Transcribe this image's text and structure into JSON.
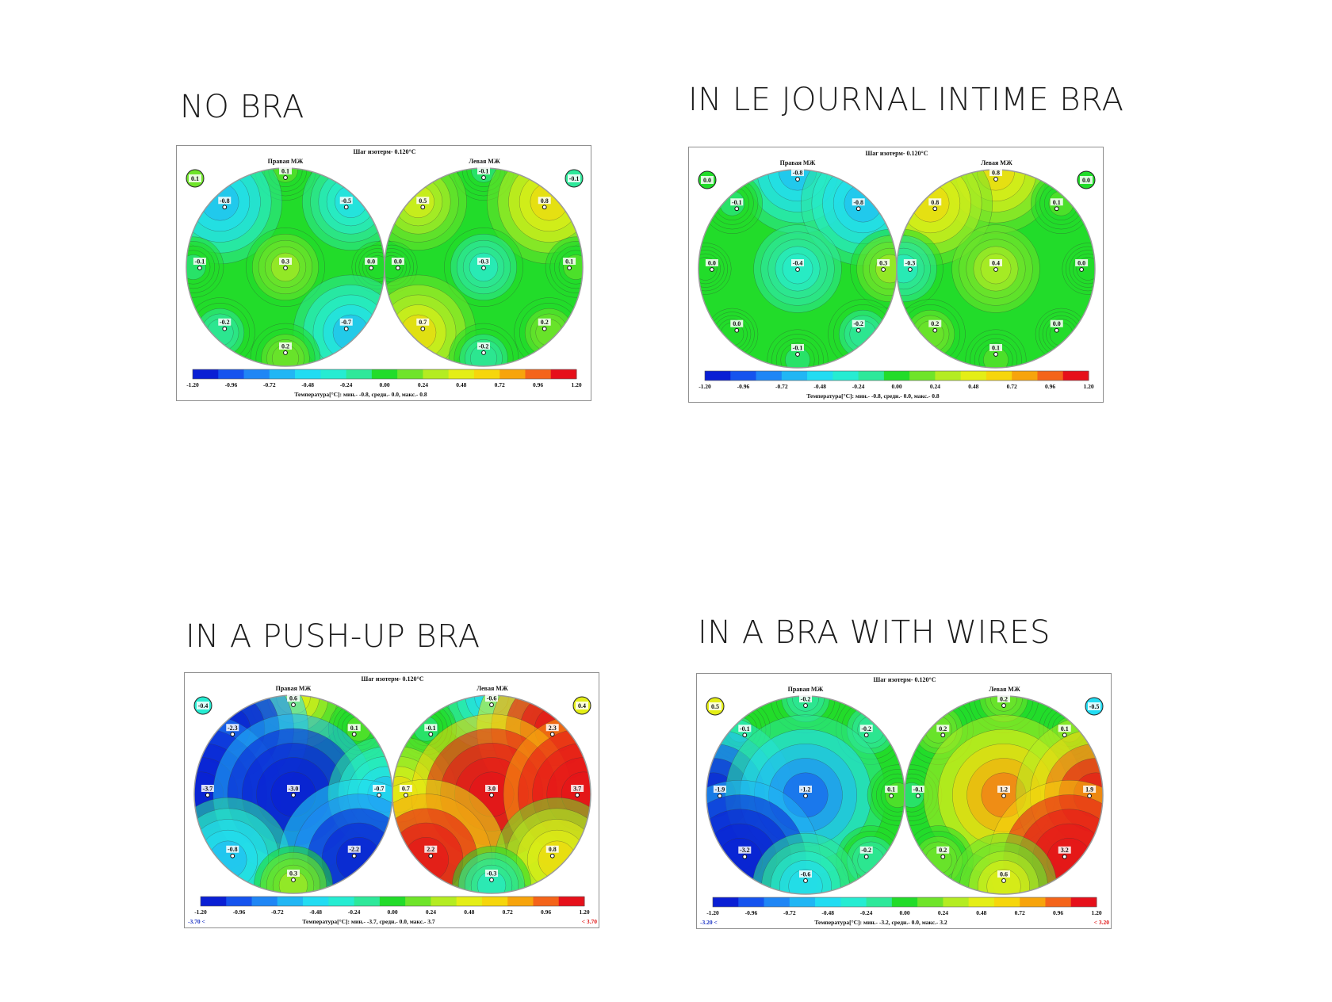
{
  "colors": {
    "scale": [
      "#0a1fd4",
      "#1553ee",
      "#1f86f5",
      "#21b6f4",
      "#22dcf2",
      "#26ecd2",
      "#2ee89a",
      "#22dc2a",
      "#6fe42a",
      "#b4ec22",
      "#e4ee16",
      "#f6d60c",
      "#f7a40c",
      "#f4641a",
      "#e6101a"
    ],
    "cold": "#1c33c4",
    "hot": "#e01818"
  },
  "common": {
    "isotherm_step": "Шаг изотерм- 0.120°C",
    "right_label": "Правая МЖ",
    "left_label": "Левая МЖ",
    "scale_ticks": [
      "-1.20",
      "-0.96",
      "-0.72",
      "-0.48",
      "-0.24",
      "0.00",
      "0.24",
      "0.48",
      "0.72",
      "0.96",
      "1.20"
    ]
  },
  "chart_data": [
    {
      "type": "heatmap",
      "heading": "NO BRA",
      "corner_left": "0.1",
      "corner_right": "-0.1",
      "out_of_range_low": "",
      "out_of_range_high": "",
      "summary": "Температура[°C]: мин.- -0.8, средн.- 0.0, макс.- 0.8",
      "right_breast": {
        "top": "0.1",
        "upper_outer": "-0.8",
        "upper_inner": "-0.5",
        "outer": "-0.1",
        "center": "0.3",
        "inner": "0.0",
        "lower_outer": "-0.2",
        "lower_inner": "-0.7",
        "bottom": "0.2"
      },
      "left_breast": {
        "top": "-0.1",
        "upper_inner": "0.5",
        "upper_outer": "0.8",
        "inner": "0.0",
        "center": "-0.3",
        "outer": "0.1",
        "lower_inner": "0.7",
        "lower_outer": "0.2",
        "bottom": "-0.2"
      }
    },
    {
      "type": "heatmap",
      "heading": "IN LE JOURNAL INTIME BRA",
      "corner_left": "0.0",
      "corner_right": "0.0",
      "out_of_range_low": "",
      "out_of_range_high": "",
      "summary": "Температура[°C]: мин.- -0.8, средн.- 0.0, макс.- 0.8",
      "right_breast": {
        "top": "-0.8",
        "upper_outer": "-0.1",
        "upper_inner": "-0.8",
        "outer": "0.0",
        "center": "-0.4",
        "inner": "0.3",
        "lower_outer": "0.0",
        "lower_inner": "-0.2",
        "bottom": "-0.1"
      },
      "left_breast": {
        "top": "0.8",
        "upper_inner": "0.8",
        "upper_outer": "0.1",
        "inner": "-0.3",
        "center": "0.4",
        "outer": "0.0",
        "lower_inner": "0.2",
        "lower_outer": "0.0",
        "bottom": "0.1"
      }
    },
    {
      "type": "heatmap",
      "heading": "IN A PUSH-UP BRA",
      "corner_left": "-0.4",
      "corner_right": "0.4",
      "out_of_range_low": "-3.70 <",
      "out_of_range_high": "< 3.70",
      "summary": "Температура[°C]: мин.- -3.7, средн.- 0.0, макс.- 3.7",
      "right_breast": {
        "top": "0.6",
        "upper_outer": "-2.3",
        "upper_inner": "0.1",
        "outer": "-3.7",
        "center": "-3.0",
        "inner": "-0.7",
        "lower_outer": "-0.8",
        "lower_inner": "-2.2",
        "bottom": "0.3"
      },
      "left_breast": {
        "top": "-0.6",
        "upper_inner": "-0.1",
        "upper_outer": "2.3",
        "inner": "0.7",
        "center": "3.0",
        "outer": "3.7",
        "lower_inner": "2.2",
        "lower_outer": "0.8",
        "bottom": "-0.3"
      }
    },
    {
      "type": "heatmap",
      "heading": "IN A BRA WITH WIRES",
      "corner_left": "0.5",
      "corner_right": "-0.5",
      "out_of_range_low": "-3.20 <",
      "out_of_range_high": "< 3.20",
      "summary": "Температура[°C]: мин.- -3.2, средн.- 0.0, макс.- 3.2",
      "right_breast": {
        "top": "-0.2",
        "upper_outer": "-0.1",
        "upper_inner": "-0.2",
        "outer": "-1.9",
        "center": "-1.2",
        "inner": "0.1",
        "lower_outer": "-3.2",
        "lower_inner": "-0.2",
        "bottom": "-0.6"
      },
      "left_breast": {
        "top": "0.2",
        "upper_inner": "0.2",
        "upper_outer": "0.1",
        "inner": "-0.1",
        "center": "1.2",
        "outer": "1.9",
        "lower_inner": "0.2",
        "lower_outer": "3.2",
        "bottom": "0.6"
      }
    }
  ]
}
